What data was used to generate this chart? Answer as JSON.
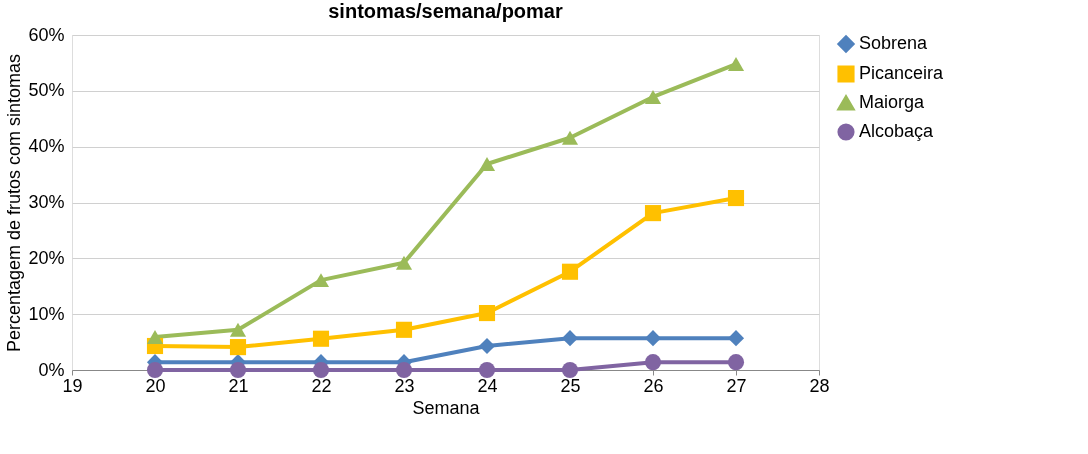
{
  "chart_data": {
    "type": "line",
    "title": "sintomas/semana/pomar",
    "xlabel": "Semana",
    "ylabel": "Percentagem de frutos com sintomas",
    "x": [
      20,
      21,
      22,
      23,
      24,
      25,
      26,
      27
    ],
    "series": [
      {
        "name": "Sobrena",
        "color": "#4f81bd",
        "marker": "diamond",
        "values": [
          1.4,
          1.4,
          1.4,
          1.4,
          4.3,
          5.7,
          5.7,
          5.7
        ]
      },
      {
        "name": "Picanceira",
        "color": "#ffc000",
        "marker": "square",
        "values": [
          4.3,
          4.1,
          5.6,
          7.2,
          10.2,
          17.6,
          28.1,
          30.8
        ]
      },
      {
        "name": "Maiorga",
        "color": "#9bbb59",
        "marker": "triangle",
        "values": [
          5.9,
          7.2,
          16.1,
          19.2,
          36.9,
          41.6,
          48.9,
          54.8
        ]
      },
      {
        "name": "Alcobaça",
        "color": "#8064a2",
        "marker": "circle",
        "values": [
          0,
          0,
          0,
          0,
          0,
          0,
          1.4,
          1.4
        ]
      }
    ],
    "xlim": [
      19,
      28
    ],
    "xticks": [
      19,
      20,
      21,
      22,
      23,
      24,
      25,
      26,
      27,
      28
    ],
    "ylim": [
      0,
      60
    ],
    "yticks": [
      {
        "value": 0,
        "label": "0%"
      },
      {
        "value": 10,
        "label": "10%"
      },
      {
        "value": 20,
        "label": "20%"
      },
      {
        "value": 30,
        "label": "30%"
      },
      {
        "value": 40,
        "label": "40%"
      },
      {
        "value": 50,
        "label": "50%"
      },
      {
        "value": 60,
        "label": "60%"
      }
    ],
    "grid": "y",
    "legend": "right",
    "line_style": "solid"
  }
}
